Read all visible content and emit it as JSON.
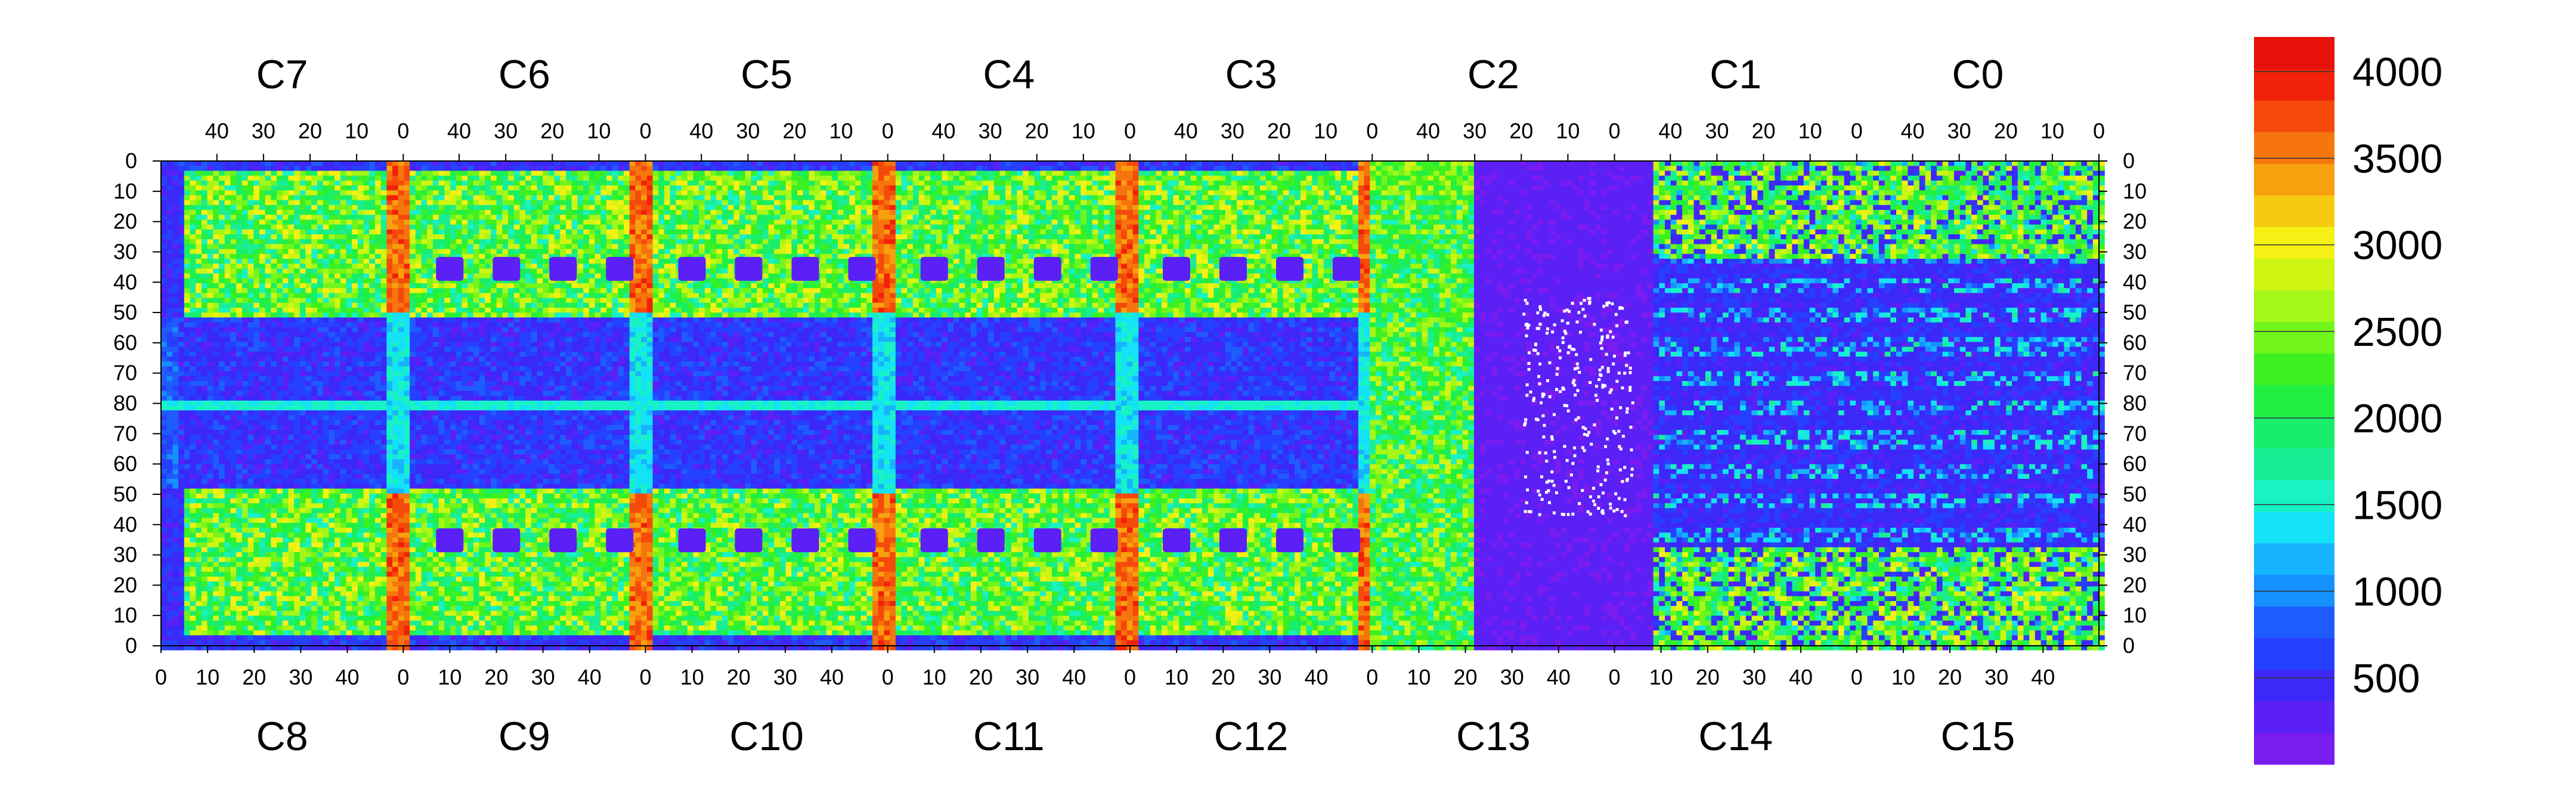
{
  "chart_data": {
    "type": "heatmap",
    "title": "",
    "xlabel": "",
    "ylabel": "",
    "top_chip_labels": [
      "C7",
      "C6",
      "C5",
      "C4",
      "C3",
      "C2",
      "C1",
      "C0"
    ],
    "bottom_chip_labels": [
      "C8",
      "C9",
      "C10",
      "C11",
      "C12",
      "C13",
      "C14",
      "C15"
    ],
    "top_axis_ticks": [
      "40",
      "30",
      "20",
      "10",
      "0"
    ],
    "bottom_axis_ticks": [
      "0",
      "10",
      "20",
      "30",
      "40"
    ],
    "left_axis_ticks": [
      "0",
      "10",
      "20",
      "30",
      "40",
      "50",
      "60",
      "70",
      "80",
      "70",
      "60",
      "50",
      "40",
      "30",
      "20",
      "10",
      "0"
    ],
    "right_axis_ticks": [
      "0",
      "10",
      "20",
      "30",
      "40",
      "50",
      "60",
      "70",
      "80",
      "70",
      "60",
      "50",
      "40",
      "30",
      "20",
      "10",
      "0"
    ],
    "chip_columns": 52,
    "rows_per_half": 80,
    "z_range": [
      0,
      4200
    ],
    "colorbar": {
      "ticks": [
        "500",
        "1000",
        "1500",
        "2000",
        "2500",
        "3000",
        "3500",
        "4000"
      ],
      "tick_values": [
        500,
        1000,
        1500,
        2000,
        2500,
        3000,
        3500,
        4000
      ]
    },
    "zones": {
      "bright_column_value": 3900,
      "pixel_matrix_value": 2300,
      "shadowed_region_value": 300,
      "central_band_value": 1400,
      "chip_C13_C2_value": 150,
      "chip_C14_C1_value": 320
    }
  },
  "colors": {
    "palette": [
      "#7a1cf0",
      "#5b20f5",
      "#3c28f8",
      "#2640ff",
      "#1f5cff",
      "#1590ff",
      "#16b4ff",
      "#14e2f6",
      "#18f2c4",
      "#19ee95",
      "#19ee6a",
      "#22f040",
      "#3df020",
      "#72f51a",
      "#a4f716",
      "#cff513",
      "#f6f014",
      "#f7ca12",
      "#f8a00e",
      "#f6750c",
      "#f54a0b",
      "#f22109",
      "#e7120b"
    ],
    "dead_pixel": "#ffffff",
    "axis": "#000000"
  }
}
